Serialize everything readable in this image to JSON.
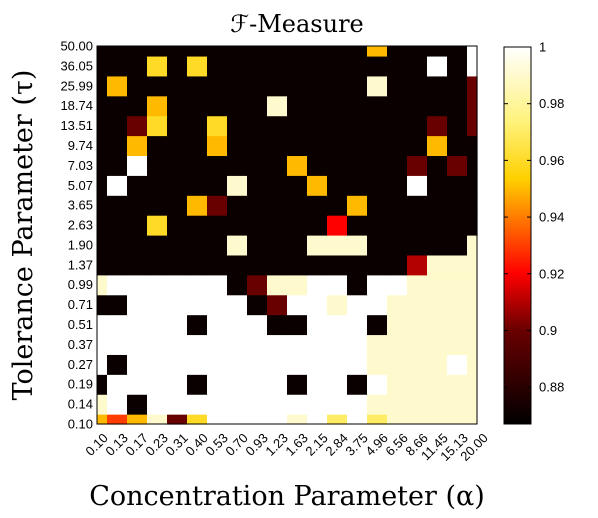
{
  "chart_data": {
    "type": "heatmap",
    "title": "ℱ-Measure",
    "xlabel": "Concentration Parameter (α)",
    "ylabel": "Tolerance Parameter (τ)",
    "x_ticks": [
      "0.10",
      "0.13",
      "0.17",
      "0.23",
      "0.31",
      "0.40",
      "0.53",
      "0.70",
      "0.93",
      "1.23",
      "1.63",
      "2.15",
      "2.84",
      "3.75",
      "4.96",
      "6.56",
      "8.66",
      "11.45",
      "15.13",
      "20.00"
    ],
    "y_ticks": [
      "0.10",
      "0.14",
      "0.19",
      "0.27",
      "0.37",
      "0.51",
      "0.71",
      "0.99",
      "1.37",
      "1.90",
      "2.63",
      "3.65",
      "5.07",
      "7.03",
      "9.74",
      "13.51",
      "18.74",
      "25.99",
      "36.05",
      "50.00"
    ],
    "colorbar": {
      "ticks": [
        "0.88",
        "0.9",
        "0.92",
        "0.94",
        "0.96",
        "0.98",
        "1"
      ],
      "range": [
        0.867,
        1.0
      ],
      "colormap": "hot"
    },
    "z_rows_bottom_to_top": [
      [
        0.95,
        0.93,
        0.95,
        0.99,
        0.9,
        0.96,
        1.0,
        1.0,
        1.0,
        1.0,
        0.99,
        1.0,
        0.97,
        1.0,
        0.97,
        0.99,
        0.99,
        0.99,
        0.99,
        0.99
      ],
      [
        0.99,
        1.0,
        0.87,
        1.0,
        1.0,
        1.0,
        1.0,
        1.0,
        1.0,
        1.0,
        1.0,
        1.0,
        1.0,
        1.0,
        0.99,
        0.99,
        0.99,
        0.99,
        0.99,
        0.99
      ],
      [
        0.87,
        1.0,
        1.0,
        1.0,
        1.0,
        0.87,
        1.0,
        1.0,
        1.0,
        1.0,
        0.87,
        1.0,
        1.0,
        0.87,
        1.0,
        0.99,
        0.99,
        0.99,
        0.99,
        0.99
      ],
      [
        1.0,
        0.87,
        1.0,
        1.0,
        1.0,
        1.0,
        1.0,
        1.0,
        1.0,
        1.0,
        1.0,
        1.0,
        1.0,
        1.0,
        0.99,
        0.99,
        0.99,
        0.99,
        1.0,
        0.99
      ],
      [
        1.0,
        1.0,
        1.0,
        1.0,
        1.0,
        1.0,
        1.0,
        1.0,
        1.0,
        1.0,
        1.0,
        1.0,
        1.0,
        1.0,
        0.99,
        0.99,
        0.99,
        0.99,
        0.99,
        0.99
      ],
      [
        1.0,
        1.0,
        1.0,
        1.0,
        1.0,
        0.87,
        1.0,
        1.0,
        1.0,
        0.87,
        0.87,
        1.0,
        1.0,
        1.0,
        0.87,
        0.99,
        0.99,
        0.99,
        0.99,
        0.99
      ],
      [
        0.87,
        0.87,
        1.0,
        1.0,
        1.0,
        1.0,
        1.0,
        1.0,
        0.87,
        0.9,
        1.0,
        1.0,
        0.99,
        1.0,
        1.0,
        0.99,
        0.99,
        0.99,
        0.99,
        0.99
      ],
      [
        0.99,
        1.0,
        1.0,
        1.0,
        1.0,
        1.0,
        1.0,
        0.87,
        0.9,
        0.99,
        0.99,
        1.0,
        1.0,
        0.87,
        1.0,
        1.0,
        0.99,
        0.99,
        0.99,
        0.99
      ],
      [
        0.87,
        0.87,
        0.87,
        0.87,
        0.87,
        0.87,
        0.87,
        0.87,
        0.87,
        0.87,
        0.87,
        0.87,
        0.87,
        0.87,
        0.87,
        0.87,
        0.91,
        0.99,
        0.99,
        0.99
      ],
      [
        0.87,
        0.87,
        0.87,
        0.87,
        0.87,
        0.87,
        0.87,
        0.99,
        0.87,
        0.87,
        0.87,
        0.99,
        0.99,
        0.99,
        0.87,
        0.87,
        0.87,
        0.87,
        0.87,
        0.99
      ],
      [
        0.87,
        0.87,
        0.87,
        0.96,
        0.87,
        0.87,
        0.87,
        0.87,
        0.87,
        0.87,
        0.87,
        0.87,
        0.92,
        0.87,
        0.87,
        0.87,
        0.87,
        0.87,
        0.87,
        0.87
      ],
      [
        0.87,
        0.87,
        0.87,
        0.87,
        0.87,
        0.95,
        0.9,
        0.87,
        0.87,
        0.87,
        0.87,
        0.87,
        0.87,
        0.95,
        0.87,
        0.87,
        0.87,
        0.87,
        0.87,
        0.87
      ],
      [
        0.87,
        1.0,
        0.87,
        0.87,
        0.87,
        0.87,
        0.87,
        0.99,
        0.87,
        0.87,
        0.87,
        0.95,
        0.87,
        0.87,
        0.87,
        0.87,
        1.0,
        0.87,
        0.87,
        0.87
      ],
      [
        0.87,
        0.87,
        1.0,
        0.87,
        0.87,
        0.87,
        0.87,
        0.87,
        0.87,
        0.87,
        0.95,
        0.87,
        0.87,
        0.87,
        0.87,
        0.87,
        0.9,
        0.87,
        0.9,
        0.87
      ],
      [
        0.87,
        0.87,
        0.95,
        0.87,
        0.87,
        0.87,
        0.95,
        0.87,
        0.87,
        0.87,
        0.87,
        0.87,
        0.87,
        0.87,
        0.87,
        0.87,
        0.87,
        0.95,
        0.87,
        0.87
      ],
      [
        0.87,
        0.87,
        0.9,
        0.96,
        0.87,
        0.87,
        0.96,
        0.87,
        0.87,
        0.87,
        0.87,
        0.87,
        0.87,
        0.87,
        0.87,
        0.87,
        0.87,
        0.9,
        0.87,
        0.9
      ],
      [
        0.87,
        0.87,
        0.87,
        0.95,
        0.87,
        0.87,
        0.87,
        0.87,
        0.87,
        0.99,
        0.87,
        0.87,
        0.87,
        0.87,
        0.87,
        0.87,
        0.87,
        0.87,
        0.87,
        0.9
      ],
      [
        0.87,
        0.95,
        0.87,
        0.87,
        0.87,
        0.87,
        0.87,
        0.87,
        0.87,
        0.87,
        0.87,
        0.87,
        0.87,
        0.87,
        0.99,
        0.87,
        0.87,
        0.87,
        0.87,
        0.9
      ],
      [
        0.87,
        0.87,
        0.87,
        0.96,
        0.87,
        0.96,
        0.87,
        0.87,
        0.87,
        0.87,
        0.87,
        0.87,
        0.87,
        0.87,
        0.87,
        0.87,
        0.87,
        1.0,
        0.87,
        1.0
      ],
      [
        0.87,
        0.87,
        0.87,
        0.87,
        0.87,
        0.87,
        0.87,
        0.87,
        0.87,
        0.87,
        0.87,
        0.87,
        0.87,
        0.87,
        0.95,
        0.87,
        0.87,
        0.87,
        0.87,
        1.0
      ]
    ]
  }
}
